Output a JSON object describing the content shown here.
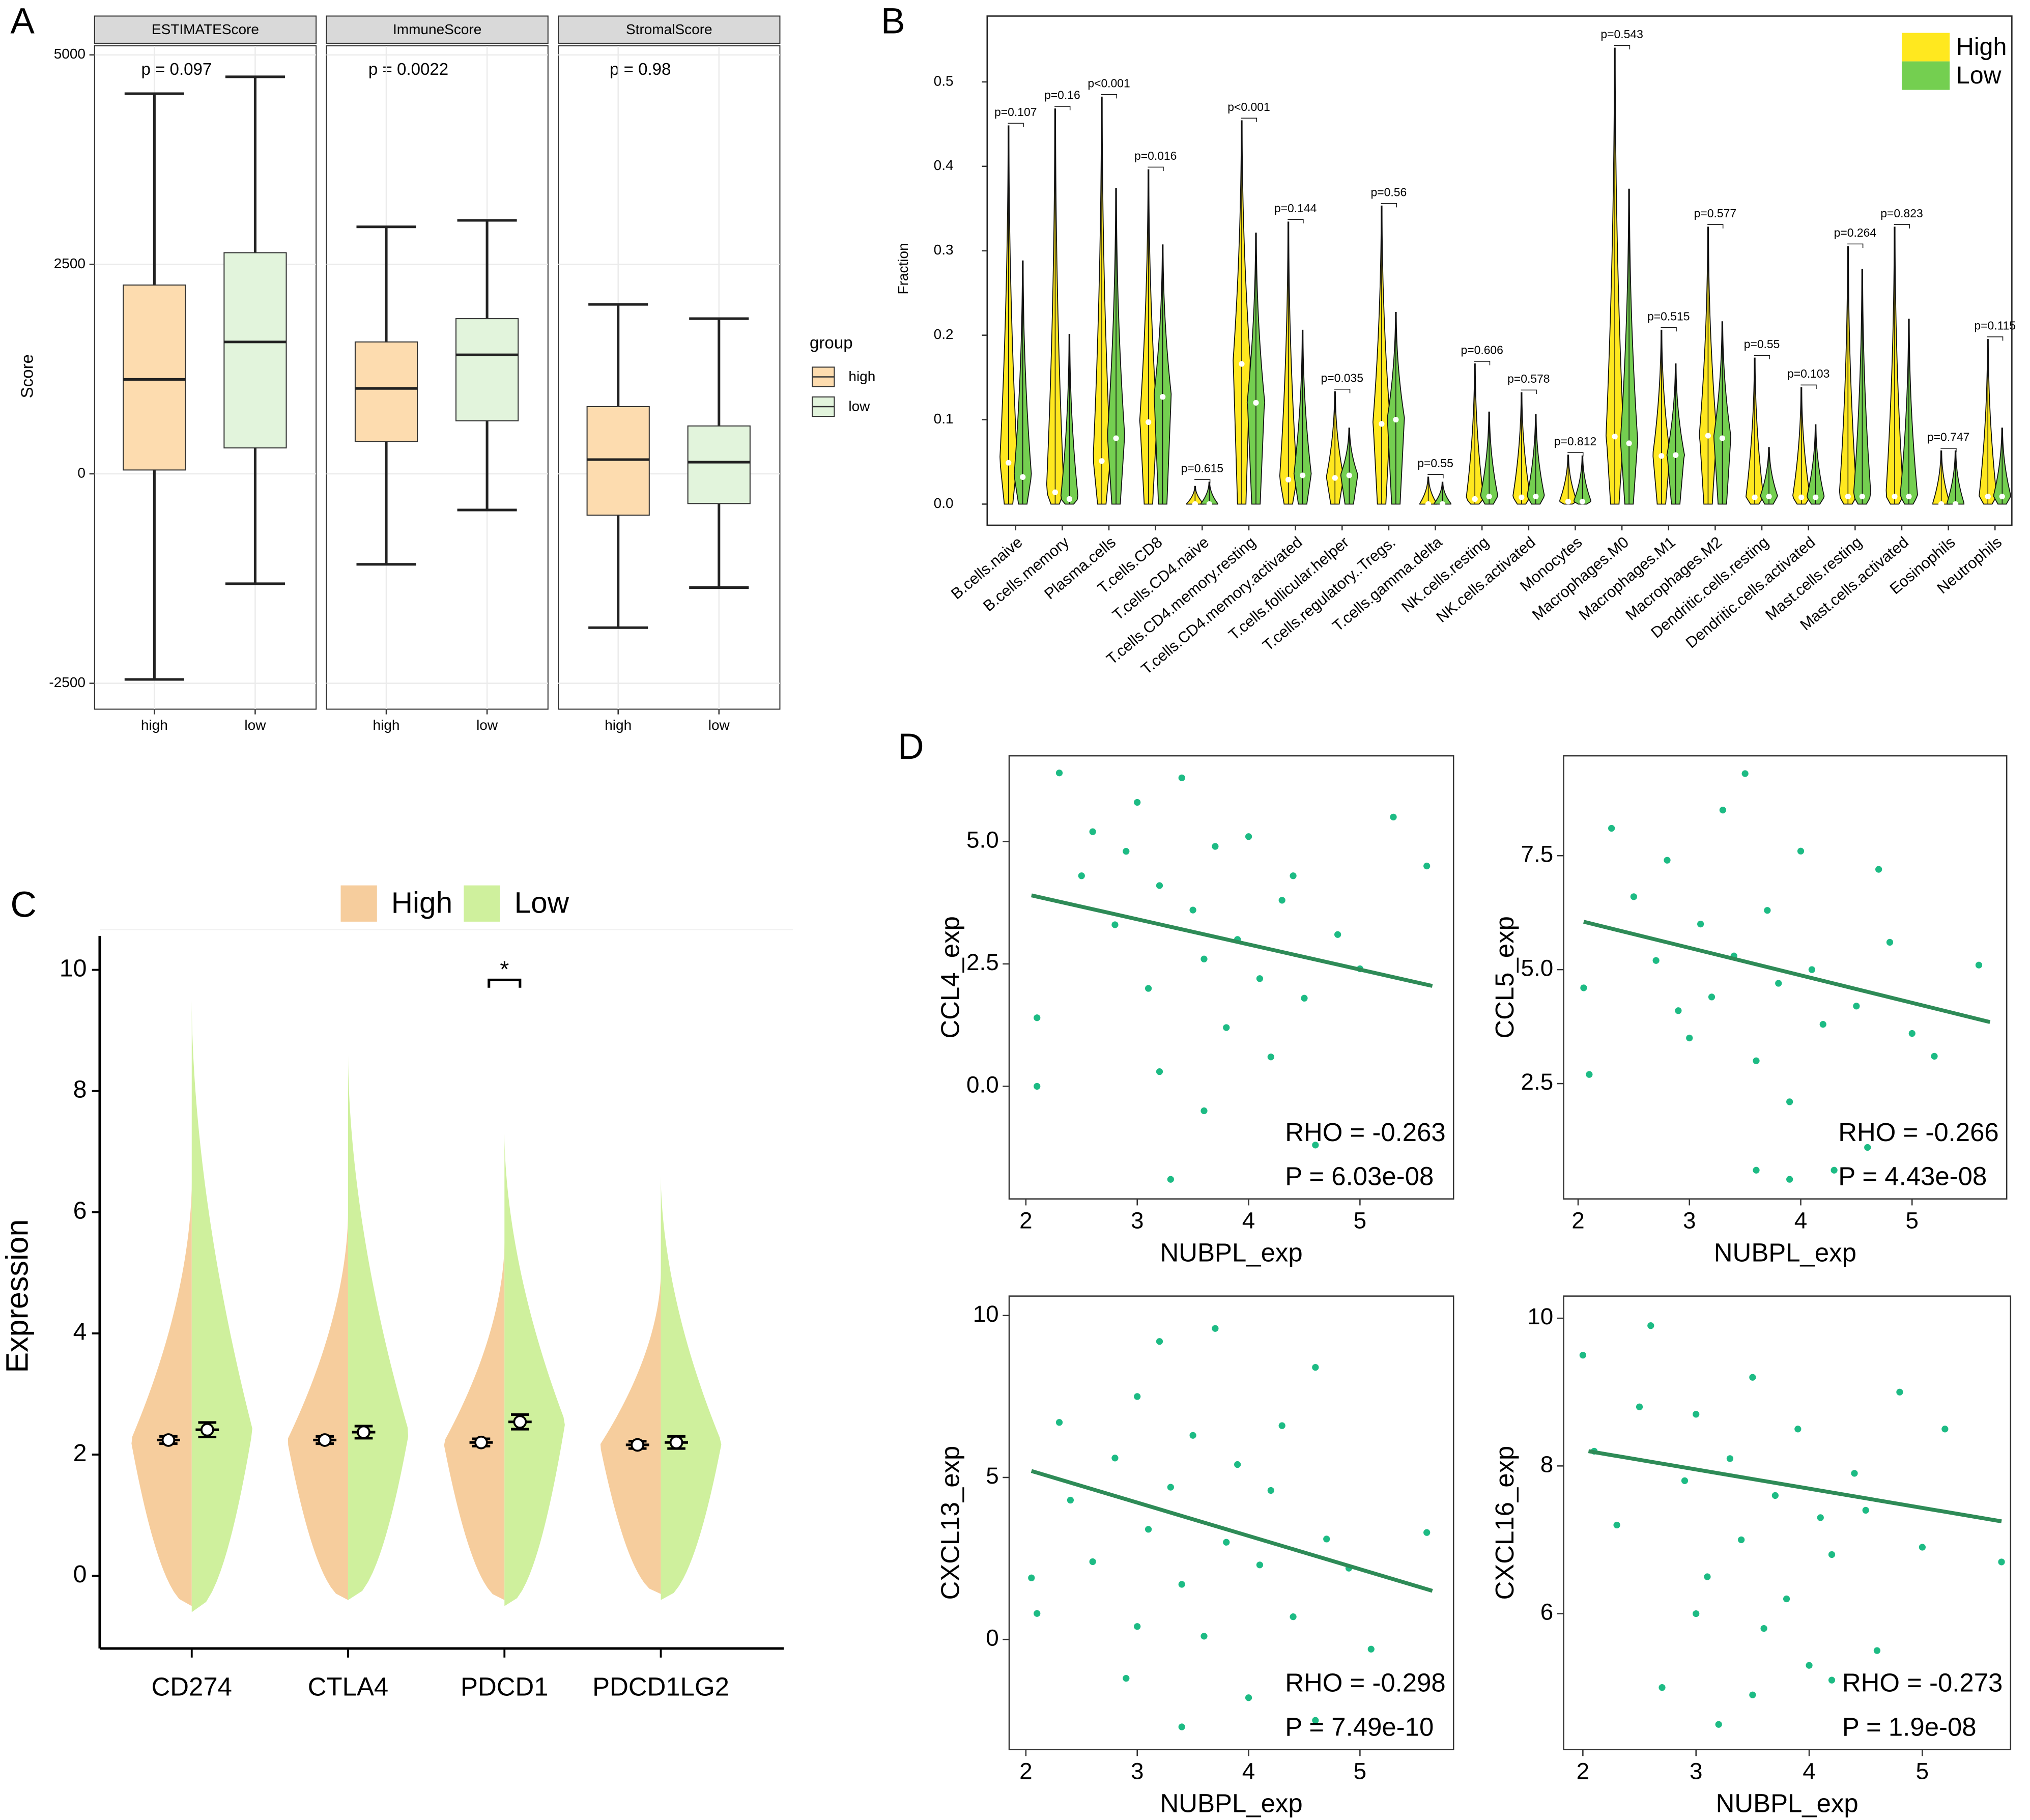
{
  "chart_data": [
    {
      "panel": "A",
      "type": "box",
      "ylabel": "Score",
      "ylim": [
        -2809,
        5108
      ],
      "yticks": [
        -2500,
        0,
        2500,
        5000
      ],
      "grid": true,
      "legend_title": "group",
      "groups": [
        "high",
        "low"
      ],
      "colors": [
        "#fddcaf",
        "#e2f4dc"
      ],
      "facets": [
        {
          "title": "ESTIMATEScore",
          "annotation": "p = 0.097",
          "categories": [
            "high",
            "low"
          ],
          "boxes": [
            {
              "min": -2454,
              "q1": 46,
              "median": 1127,
              "q3": 2253,
              "max": 4537
            },
            {
              "min": -1312,
              "q1": 309,
              "median": 1574,
              "q3": 2639,
              "max": 4738
            }
          ]
        },
        {
          "title": "ImmuneScore",
          "annotation": "p = 0.0022",
          "categories": [
            "high",
            "low"
          ],
          "boxes": [
            {
              "min": -1080,
              "q1": 386,
              "median": 1019,
              "q3": 1574,
              "max": 2948
            },
            {
              "min": -432,
              "q1": 633,
              "median": 1420,
              "q3": 1852,
              "max": 3025
            }
          ]
        },
        {
          "title": "StromalScore",
          "annotation": "p = 0.98",
          "categories": [
            "high",
            "low"
          ],
          "boxes": [
            {
              "min": -1836,
              "q1": -494,
              "median": 170,
              "q3": 802,
              "max": 2022
            },
            {
              "min": -1358,
              "q1": -355,
              "median": 139,
              "q3": 571,
              "max": 1852
            }
          ]
        }
      ]
    },
    {
      "panel": "B",
      "type": "violin",
      "ylabel": "Fraction",
      "ylim": [
        -0.025,
        0.578
      ],
      "yticks": [
        {
          "value": 0,
          "label": "0.0"
        },
        0.1,
        0.2,
        0.3,
        0.4,
        0.5
      ],
      "legend": "top-right",
      "categories": [
        "B.cells.naive",
        "B.cells.memory",
        "Plasma.cells",
        "T.cells.CD8",
        "T.cells.CD4.naive",
        "T.cells.CD4.memory.resting",
        "T.cells.CD4.memory.activated",
        "T.cells.follicular.helper",
        "T.cells.regulatory..Tregs.",
        "T.cells.gamma.delta",
        "NK.cells.resting",
        "NK.cells.activated",
        "Monocytes",
        "Macrophages.M0",
        "Macrophages.M1",
        "Macrophages.M2",
        "Dendritic.cells.resting",
        "Dendritic.cells.activated",
        "Mast.cells.resting",
        "Mast.cells.activated",
        "Eosinophils",
        "Neutrophils"
      ],
      "category_colors": [
        "#000",
        "#000",
        "#c00000",
        "#c00000",
        "#000",
        "#c00000",
        "#000",
        "#c00000",
        "#000",
        "#000",
        "#000",
        "#000",
        "#000",
        "#000",
        "#000",
        "#000",
        "#000",
        "#000",
        "#000",
        "#000",
        "#000",
        "#000"
      ],
      "p_labels": [
        "p=0.107",
        "p=0.16",
        "p<0.001",
        "p=0.016",
        "p=0.615",
        "p<0.001",
        "p=0.144",
        "p=0.035",
        "p=0.56",
        "p=0.55",
        "p=0.606",
        "p=0.578",
        "p=0.812",
        "p=0.543",
        "p=0.515",
        "p=0.577",
        "p=0.55",
        "p=0.103",
        "p=0.264",
        "p=0.823",
        "p=0.747",
        "p=0.115"
      ],
      "series": [
        {
          "name": "High",
          "color": "#ffe81f",
          "min": [
            0,
            0,
            0,
            0,
            0,
            0,
            0,
            0,
            0,
            0,
            0,
            0,
            0,
            0,
            0,
            0,
            0,
            0,
            0,
            0,
            0,
            0
          ],
          "median": [
            0.049,
            0.014,
            0.051,
            0.097,
            0,
            0.166,
            0.029,
            0.031,
            0.095,
            0,
            0.006,
            0.008,
            0.003,
            0.08,
            0.057,
            0.081,
            0.008,
            0.008,
            0.009,
            0.009,
            0,
            0.009
          ],
          "max": [
            0.448,
            0.468,
            0.482,
            0.396,
            0.021,
            0.454,
            0.334,
            0.133,
            0.353,
            0.032,
            0.166,
            0.132,
            0.058,
            0.54,
            0.206,
            0.328,
            0.173,
            0.138,
            0.305,
            0.328,
            0.063,
            0.195
          ]
        },
        {
          "name": "Low",
          "color": "#74cf50",
          "min": [
            0,
            0,
            0,
            0,
            0,
            0,
            0,
            0,
            0,
            0,
            0,
            0,
            0,
            0,
            0,
            0,
            0,
            0,
            0,
            0,
            0,
            0
          ],
          "median": [
            0.032,
            0.006,
            0.078,
            0.127,
            0,
            0.12,
            0.034,
            0.034,
            0.1,
            0,
            0.009,
            0.009,
            0.003,
            0.072,
            0.058,
            0.078,
            0.009,
            0.008,
            0.009,
            0.009,
            0,
            0.009
          ],
          "max": [
            0.288,
            0.201,
            0.374,
            0.307,
            0.026,
            0.321,
            0.206,
            0.09,
            0.227,
            0.026,
            0.109,
            0.106,
            0.057,
            0.373,
            0.166,
            0.216,
            0.067,
            0.094,
            0.278,
            0.219,
            0.063,
            0.09
          ]
        }
      ]
    },
    {
      "panel": "C",
      "type": "split_violin",
      "ylabel": "Expression",
      "ylim": [
        -1.2,
        10.56
      ],
      "yticks": [
        0,
        2,
        4,
        6,
        8,
        10
      ],
      "legend": "top",
      "categories": [
        "CD274",
        "CTLA4",
        "PDCD1",
        "PDCD1LG2"
      ],
      "significance": [
        null,
        null,
        "*",
        null
      ],
      "series": [
        {
          "name": "High",
          "color": "#f6cd9d",
          "mean": [
            2.24,
            2.24,
            2.2,
            2.16
          ],
          "error": [
            0.06,
            0.06,
            0.06,
            0.06
          ],
          "min": [
            -0.5,
            -0.4,
            -0.4,
            -0.3
          ],
          "max": [
            6.5,
            6.0,
            5.5,
            5.0
          ]
        },
        {
          "name": "Low",
          "color": "#cff09d",
          "mean": [
            2.41,
            2.37,
            2.54,
            2.2
          ],
          "error": [
            0.12,
            0.1,
            0.12,
            0.1
          ],
          "min": [
            -0.6,
            -0.4,
            -0.5,
            -0.4
          ],
          "max": [
            9.5,
            8.6,
            7.3,
            6.6
          ]
        }
      ]
    },
    {
      "panel": "D",
      "type": "scatter",
      "xlabel": "NUBPL_exp",
      "ylabel": "CCL4_exp",
      "xlim": [
        1.85,
        5.84
      ],
      "ylim": [
        -2.3,
        6.75
      ],
      "xticks": [
        2,
        3,
        4,
        5
      ],
      "yticks": [
        {
          "value": 0,
          "label": "0.0"
        },
        2.5,
        {
          "value": 5,
          "label": "5.0"
        }
      ],
      "color": "#1dbb84",
      "x": [
        2.1,
        2.1,
        2.3,
        2.5,
        2.6,
        2.8,
        3.0,
        3.1,
        3.2,
        3.3,
        3.4,
        3.5,
        3.6,
        3.7,
        3.8,
        3.9,
        4.0,
        4.1,
        4.2,
        4.3,
        4.5,
        4.6,
        4.8,
        5.0,
        5.3,
        5.6,
        3.2,
        3.6,
        2.9,
        4.4
      ],
      "y": [
        1.4,
        0.0,
        6.4,
        4.3,
        5.2,
        3.3,
        5.8,
        2.0,
        4.1,
        -1.9,
        6.3,
        3.6,
        2.6,
        4.9,
        1.2,
        3.0,
        5.1,
        2.2,
        0.6,
        3.8,
        1.8,
        -1.2,
        3.1,
        2.4,
        5.5,
        4.5,
        0.3,
        -0.5,
        4.8,
        4.3
      ],
      "fit": {
        "x": [
          2.05,
          5.65
        ],
        "y": [
          3.9,
          2.05
        ],
        "color": "#2e8b57"
      },
      "annotations": [
        "RHO = -0.263",
        "P = 6.03e-08"
      ]
    },
    {
      "type": "scatter",
      "xlabel": "NUBPL_exp",
      "ylabel": "CCL5_exp",
      "xlim": [
        1.87,
        5.85
      ],
      "ylim": [
        -0.03,
        9.69
      ],
      "xticks": [
        2,
        3,
        4,
        5
      ],
      "yticks": [
        2.5,
        {
          "value": 5,
          "label": "5.0"
        },
        7.5
      ],
      "color": "#1dbb84",
      "x": [
        2.05,
        2.1,
        2.3,
        2.5,
        2.7,
        2.8,
        3.0,
        3.1,
        3.2,
        3.3,
        3.4,
        3.5,
        3.6,
        3.7,
        3.8,
        3.9,
        4.0,
        4.1,
        4.2,
        4.3,
        4.5,
        4.6,
        4.8,
        5.0,
        5.2,
        5.6,
        3.6,
        3.9,
        4.7,
        2.9
      ],
      "y": [
        4.6,
        2.7,
        8.1,
        6.6,
        5.2,
        7.4,
        3.5,
        6.0,
        4.4,
        8.5,
        5.3,
        9.3,
        3.0,
        6.3,
        4.7,
        2.1,
        7.6,
        5.0,
        3.8,
        0.6,
        4.2,
        1.1,
        5.6,
        3.6,
        3.1,
        5.1,
        0.6,
        0.4,
        7.2,
        4.1
      ],
      "fit": {
        "x": [
          2.05,
          5.7
        ],
        "y": [
          6.05,
          3.85
        ],
        "color": "#2e8b57"
      },
      "annotations": [
        "RHO = -0.266",
        "P = 4.43e-08"
      ]
    },
    {
      "type": "scatter",
      "xlabel": "NUBPL_exp",
      "ylabel": "CXCL13_exp",
      "xlim": [
        1.85,
        5.84
      ],
      "ylim": [
        -3.4,
        10.6
      ],
      "xticks": [
        2,
        3,
        4,
        5
      ],
      "yticks": [
        0,
        5,
        10
      ],
      "color": "#1dbb84",
      "x": [
        2.05,
        2.1,
        2.3,
        2.4,
        2.6,
        2.8,
        2.9,
        3.0,
        3.1,
        3.2,
        3.3,
        3.4,
        3.5,
        3.6,
        3.7,
        3.8,
        3.9,
        4.0,
        4.1,
        4.2,
        4.4,
        4.6,
        4.7,
        4.9,
        5.1,
        5.6,
        3.4,
        4.6,
        3.0,
        4.3
      ],
      "y": [
        1.9,
        0.8,
        6.7,
        4.3,
        2.4,
        5.6,
        -1.2,
        7.5,
        3.4,
        9.2,
        4.7,
        1.7,
        6.3,
        0.1,
        9.6,
        3.0,
        5.4,
        -1.8,
        2.3,
        4.6,
        0.7,
        8.4,
        3.1,
        2.2,
        -0.3,
        3.3,
        -2.7,
        -2.5,
        0.4,
        6.6
      ],
      "fit": {
        "x": [
          2.05,
          5.65
        ],
        "y": [
          5.2,
          1.5
        ],
        "color": "#2e8b57"
      },
      "annotations": [
        "RHO = -0.298",
        "P = 7.49e-10"
      ]
    },
    {
      "type": "scatter",
      "xlabel": "NUBPL_exp",
      "ylabel": "CXCL16_exp",
      "xlim": [
        1.83,
        5.78
      ],
      "ylim": [
        4.16,
        10.3
      ],
      "xticks": [
        2,
        3,
        4,
        5
      ],
      "yticks": [
        6,
        8,
        10
      ],
      "color": "#1dbb84",
      "x": [
        2.0,
        2.1,
        2.3,
        2.5,
        2.6,
        2.7,
        2.9,
        3.0,
        3.1,
        3.2,
        3.3,
        3.4,
        3.5,
        3.6,
        3.7,
        3.8,
        3.9,
        4.0,
        4.1,
        4.2,
        4.4,
        4.6,
        4.8,
        5.0,
        5.2,
        5.7,
        3.5,
        4.2,
        3.0,
        4.5
      ],
      "y": [
        9.5,
        8.2,
        7.2,
        8.8,
        9.9,
        5.0,
        7.8,
        8.7,
        6.5,
        4.5,
        8.1,
        7.0,
        9.2,
        5.8,
        7.6,
        6.2,
        8.5,
        5.3,
        7.3,
        6.8,
        7.9,
        5.5,
        9.0,
        6.9,
        8.5,
        6.7,
        4.9,
        5.1,
        6.0,
        7.4
      ],
      "fit": {
        "x": [
          2.05,
          5.7
        ],
        "y": [
          8.2,
          7.25
        ],
        "color": "#2e8b57"
      },
      "annotations": [
        "RHO = -0.273",
        "P = 1.9e-08"
      ]
    }
  ]
}
